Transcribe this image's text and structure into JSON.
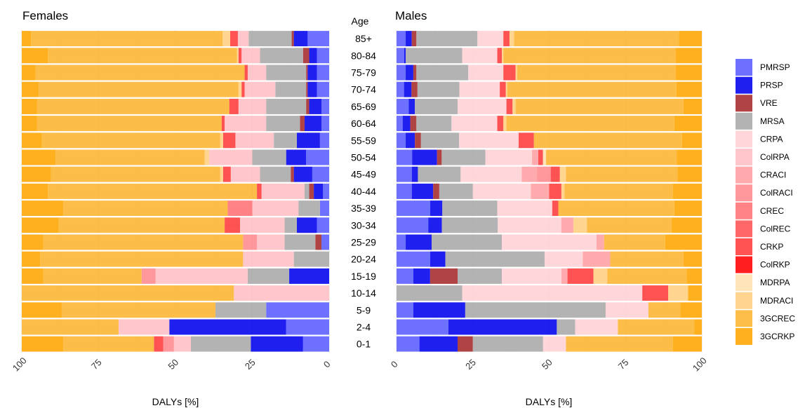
{
  "chart_data": {
    "type": "bar",
    "orientation": "horizontal-stacked-100",
    "age_header": "Age",
    "ages": [
      "85+",
      "80-84",
      "75-79",
      "70-74",
      "65-69",
      "60-64",
      "55-59",
      "50-54",
      "45-49",
      "40-44",
      "35-39",
      "30-34",
      "25-29",
      "20-24",
      "15-19",
      "10-14",
      "5-9",
      "2-4",
      "0-1"
    ],
    "series_names": [
      "PMRSP",
      "PRSP",
      "VRE",
      "MRSA",
      "CRPA",
      "ColRPA",
      "CRACI",
      "ColRACI",
      "CREC",
      "ColREC",
      "CRKP",
      "ColRKP",
      "MDRPA",
      "MDRACI",
      "3GCREC",
      "3GCRKP"
    ],
    "colors": [
      "#5a5cff",
      "#0000ee",
      "#a52a2a",
      "#a9a9a9",
      "#ffd1d6",
      "#ffbfc4",
      "#ff9fa3",
      "#ff8a8e",
      "#ff7275",
      "#ff5254",
      "#ff3a3a",
      "#ff0000",
      "#ffe0b0",
      "#ffcf80",
      "#fdb430",
      "#ffa500"
    ],
    "xlabel": "DALYs [%]",
    "xticks": [
      0,
      25,
      50,
      75,
      100
    ],
    "xlim": [
      0,
      100
    ],
    "panels": [
      {
        "title": "Females",
        "direction": "reversed",
        "values": [
          [
            7.0,
            4.5,
            0.7,
            14.0,
            0,
            3.5,
            0,
            0,
            0,
            0,
            2.5,
            0,
            0,
            2.5,
            62.3,
            3.0
          ],
          [
            4.0,
            2.5,
            2.0,
            14.0,
            0,
            6.0,
            0,
            0,
            0,
            0,
            1.0,
            0,
            0,
            0.5,
            61.5,
            8.5
          ],
          [
            4.0,
            3.0,
            0.5,
            13.0,
            0,
            6.0,
            0,
            0,
            0,
            0,
            1.0,
            0,
            0,
            0,
            68.0,
            4.5
          ],
          [
            4.0,
            3.0,
            0.5,
            10.0,
            0,
            10.0,
            0,
            0,
            0,
            0,
            1.0,
            0,
            0,
            1.0,
            65.0,
            5.5
          ],
          [
            2.5,
            4.0,
            1.0,
            13.0,
            0,
            9.0,
            0,
            0,
            0,
            0,
            3.0,
            0,
            0,
            0,
            62.5,
            5.0
          ],
          [
            2.5,
            5.5,
            1.5,
            11.0,
            0,
            13.5,
            0,
            0,
            0,
            0,
            1.0,
            0,
            0,
            0,
            60.0,
            5.0
          ],
          [
            3.0,
            7.5,
            0,
            7.5,
            0,
            12.5,
            0,
            0,
            0,
            0,
            4.0,
            0,
            0,
            1.0,
            58.0,
            6.5
          ],
          [
            7.5,
            6.5,
            0,
            11.0,
            0,
            14.0,
            0,
            0,
            0,
            0,
            0,
            0,
            0,
            1.5,
            48.5,
            11.0
          ],
          [
            5.5,
            6.0,
            1.0,
            10.0,
            0,
            9.5,
            0,
            0,
            0,
            0,
            2.5,
            0,
            0,
            1.0,
            55.0,
            9.5
          ],
          [
            2.0,
            3.0,
            1.5,
            1.5,
            0,
            14.0,
            0,
            0,
            0,
            0,
            1.5,
            0,
            0,
            0,
            68.0,
            8.5
          ],
          [
            3.0,
            0,
            0,
            7.0,
            0,
            15.0,
            0,
            0,
            8.0,
            0,
            0,
            0,
            0,
            0,
            53.5,
            13.5
          ],
          [
            4.0,
            6.5,
            0,
            4.0,
            0,
            14.5,
            0,
            0,
            0,
            0,
            5.0,
            0,
            0,
            0,
            54.0,
            12.0
          ],
          [
            2.5,
            0,
            2.0,
            10.0,
            0,
            9.0,
            0,
            4.5,
            0,
            0,
            0,
            0,
            0,
            0,
            65.0,
            7.0
          ],
          [
            0,
            0,
            0,
            11.5,
            0,
            16.5,
            0,
            0,
            0,
            0,
            0,
            0,
            0,
            0,
            66.0,
            6.0
          ],
          [
            0,
            13.0,
            0,
            13.5,
            0,
            30.0,
            0,
            4.5,
            0,
            0,
            0,
            0,
            0,
            0,
            32.0,
            7.0
          ],
          [
            0,
            0,
            0,
            0,
            0,
            31.0,
            0,
            0,
            0,
            0,
            0,
            0,
            0,
            0,
            69.0,
            0
          ],
          [
            20.5,
            0,
            0,
            16.5,
            0,
            0,
            0,
            0,
            0,
            0,
            0,
            0,
            0,
            0,
            50.0,
            13.0
          ],
          [
            14.0,
            38.0,
            0,
            0,
            0,
            16.5,
            0,
            0,
            0,
            0,
            0,
            0,
            0,
            0,
            31.5,
            0
          ],
          [
            8.5,
            17.0,
            0,
            19.5,
            0,
            5.5,
            0,
            3.5,
            0,
            0,
            3.0,
            0,
            0,
            0,
            29.5,
            13.5
          ]
        ]
      },
      {
        "title": "Males",
        "direction": "normal",
        "values": [
          [
            3.0,
            2.0,
            1.5,
            20.0,
            8.5,
            0,
            0,
            0,
            0,
            0,
            2.0,
            0,
            0,
            1.5,
            54.0,
            7.5
          ],
          [
            2.5,
            0.5,
            0,
            18.5,
            11.5,
            0,
            0,
            0,
            0,
            0,
            1.5,
            0,
            0,
            0.5,
            56.5,
            8.5
          ],
          [
            3.0,
            2.5,
            1.0,
            17.0,
            11.5,
            0,
            0,
            0,
            0,
            0,
            4.0,
            0,
            0,
            0.5,
            52.0,
            8.5
          ],
          [
            2.5,
            2.5,
            2.0,
            14.0,
            13.5,
            0,
            0,
            0,
            0,
            0,
            2.0,
            0,
            0,
            0.5,
            56.5,
            8.5
          ],
          [
            4.0,
            2.0,
            0,
            14.0,
            16.0,
            0,
            0,
            0,
            0,
            0,
            2.0,
            0,
            0,
            1.0,
            55.0,
            6.0
          ],
          [
            2.0,
            2.5,
            2.0,
            11.5,
            15.0,
            0,
            0,
            0,
            0,
            0,
            2.0,
            0,
            0,
            1.0,
            55.0,
            9.0
          ],
          [
            3.0,
            3.0,
            2.0,
            12.5,
            19.5,
            0,
            0,
            0,
            0,
            0,
            5.0,
            0,
            0,
            0,
            48.5,
            6.5
          ],
          [
            5.0,
            8.0,
            1.5,
            14.0,
            15.0,
            0,
            2.0,
            0,
            0,
            0,
            1.5,
            0,
            1.0,
            0,
            42.0,
            8.0
          ],
          [
            5.0,
            2.0,
            0,
            14.0,
            20.0,
            0,
            5.0,
            4.5,
            0,
            0,
            3.0,
            0,
            0,
            2.0,
            36.5,
            8.0
          ],
          [
            5.0,
            7.0,
            2.0,
            11.0,
            19.0,
            0,
            6.0,
            0,
            0,
            0,
            4.0,
            0,
            0,
            1.0,
            35.5,
            9.5
          ],
          [
            11.0,
            4.0,
            0,
            18.0,
            18.0,
            0,
            0,
            0,
            0,
            0,
            2.0,
            0,
            0,
            0,
            38.0,
            9.0
          ],
          [
            10.5,
            4.5,
            0,
            18.5,
            21.0,
            0,
            4.0,
            0,
            0,
            0,
            0,
            0,
            0,
            4.5,
            28.0,
            10.0
          ],
          [
            3.0,
            8.5,
            0,
            23.0,
            31.0,
            0,
            2.5,
            0,
            0,
            0,
            0,
            0,
            0,
            0,
            20.0,
            12.0
          ],
          [
            11.0,
            5.0,
            0,
            32.5,
            12.5,
            0,
            9.0,
            0,
            0,
            0,
            0,
            0,
            0,
            0,
            24.0,
            6.0
          ],
          [
            5.5,
            5.5,
            9.0,
            14.5,
            19.5,
            0,
            2.0,
            0,
            0,
            0,
            8.5,
            0,
            0,
            4.5,
            26.0,
            5.0
          ],
          [
            0,
            0,
            0,
            21.5,
            59.0,
            0,
            0,
            0,
            0,
            0,
            8.5,
            0,
            0,
            6.5,
            0,
            4.5
          ],
          [
            5.5,
            17.0,
            0,
            46.0,
            14.0,
            0,
            0,
            0,
            0,
            0,
            0,
            0,
            0,
            0,
            10.5,
            7.0
          ],
          [
            17.0,
            35.5,
            0,
            6.0,
            14.0,
            0,
            0,
            0,
            0,
            0,
            0,
            0,
            0,
            0,
            25.0,
            2.5
          ],
          [
            7.5,
            12.5,
            5.0,
            23.0,
            7.5,
            0,
            0,
            0,
            0,
            0,
            0,
            0,
            0,
            0,
            35.0,
            9.5
          ]
        ]
      }
    ],
    "legend_position": "right"
  }
}
